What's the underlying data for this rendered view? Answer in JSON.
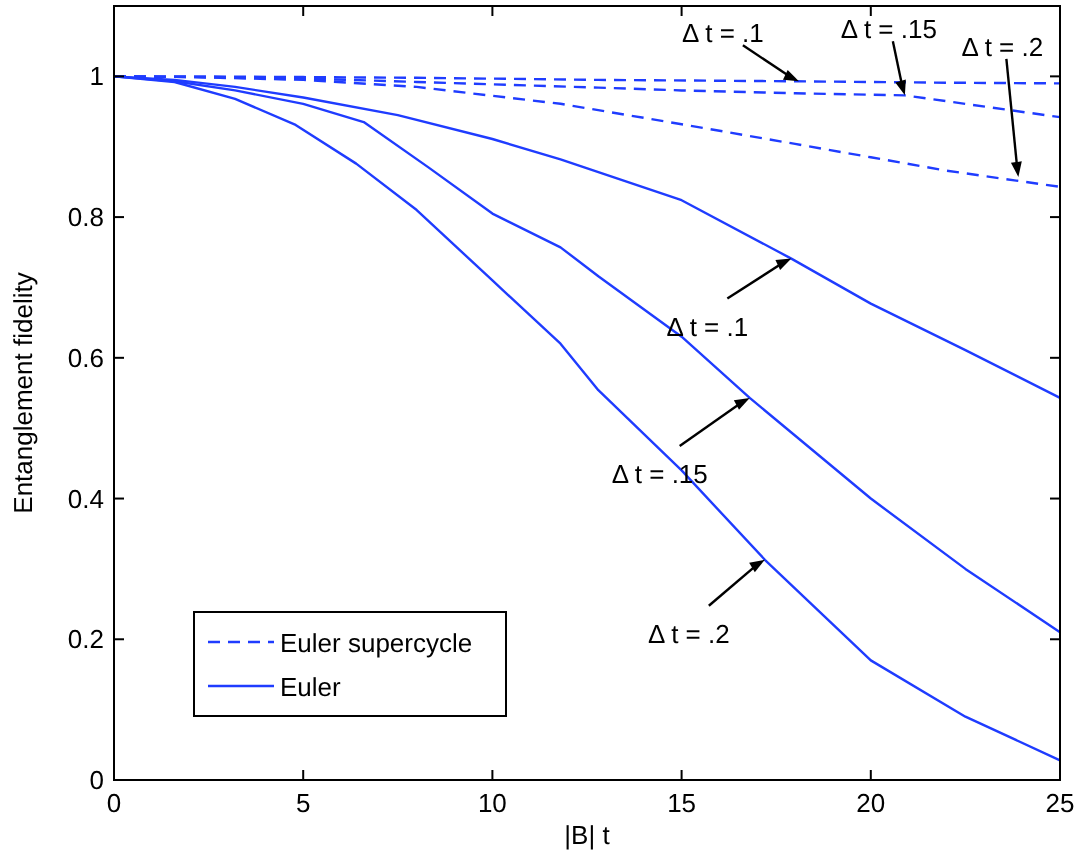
{
  "chart_data": {
    "type": "line",
    "xlabel": "|B| t",
    "ylabel": "Entanglement fidelity",
    "xlim": [
      0,
      25
    ],
    "ylim": [
      0,
      1.1
    ],
    "xticks": [
      0,
      5,
      10,
      15,
      20,
      25
    ],
    "yticks": [
      0,
      0.2,
      0.4,
      0.6,
      0.8,
      1
    ],
    "legend": "bottom left",
    "grid": false,
    "marker": "none",
    "series": [
      {
        "name": "Euler supercycle",
        "color": "#1f3cff",
        "line_style": "dashed",
        "x": [
          0,
          2,
          5,
          8,
          12.8,
          18,
          22,
          25
        ],
        "values": [
          1,
          1,
          0.999,
          0.998,
          0.995,
          0.993,
          0.991,
          0.99
        ]
      },
      {
        "color": "#1f3cff",
        "line_style": "dashed",
        "x": [
          0,
          2,
          5,
          8,
          12.8,
          15,
          18,
          20.9,
          25
        ],
        "values": [
          1,
          0.999,
          0.997,
          0.992,
          0.984,
          0.98,
          0.976,
          0.973,
          0.942
        ]
      },
      {
        "color": "#1f3cff",
        "line_style": "dashed",
        "x": [
          0,
          2,
          5,
          8,
          11.8,
          15,
          18,
          20,
          22,
          25
        ],
        "values": [
          1,
          0.999,
          0.995,
          0.985,
          0.961,
          0.932,
          0.904,
          0.885,
          0.866,
          0.843
        ]
      },
      {
        "name": "Euler",
        "color": "#1f3cff",
        "line_style": "solid",
        "x": [
          0,
          1.6,
          3.2,
          5,
          7.5,
          10,
          11.8,
          15,
          17.9,
          20,
          22.5,
          25
        ],
        "values": [
          1,
          0.995,
          0.985,
          0.97,
          0.945,
          0.911,
          0.882,
          0.824,
          0.741,
          0.677,
          0.611,
          0.543
        ]
      },
      {
        "color": "#1f3cff",
        "line_style": "solid",
        "x": [
          0,
          1.6,
          3.2,
          5,
          6.6,
          8.3,
          10,
          11.8,
          12.8,
          15,
          16.8,
          20,
          22.5,
          25
        ],
        "values": [
          1,
          0.993,
          0.98,
          0.961,
          0.935,
          0.871,
          0.805,
          0.757,
          0.716,
          0.63,
          0.543,
          0.4,
          0.3,
          0.21
        ]
      },
      {
        "color": "#1f3cff",
        "line_style": "solid",
        "x": [
          0,
          1.6,
          3.2,
          4.8,
          6.4,
          8,
          10,
          11.8,
          12.8,
          15,
          17.2,
          20,
          22.5,
          25
        ],
        "values": [
          1,
          0.992,
          0.968,
          0.931,
          0.876,
          0.81,
          0.71,
          0.62,
          0.554,
          0.44,
          0.313,
          0.17,
          0.09,
          0.028
        ]
      }
    ],
    "annotations": [
      {
        "text": "Δ t = .1",
        "x": 18.1,
        "y": 0.993
      },
      {
        "text": "Δ t = .15",
        "x": 20.9,
        "y": 0.973
      },
      {
        "text": "Δ t = .2",
        "x": 23.9,
        "y": 0.857
      },
      {
        "text": "Δ t = .1",
        "x": 17.9,
        "y": 0.741
      },
      {
        "text": "Δ t = .15",
        "x": 16.8,
        "y": 0.543
      },
      {
        "text": "Δ t = .2",
        "x": 17.2,
        "y": 0.313
      }
    ]
  }
}
